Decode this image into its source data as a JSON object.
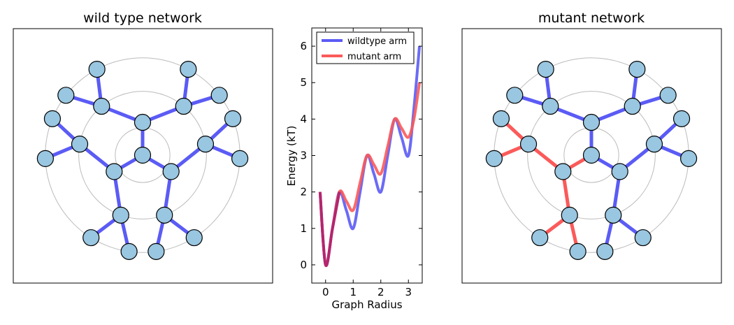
{
  "left_panel": {
    "title": "wild type network"
  },
  "right_panel": {
    "title": "mutant network"
  },
  "colors": {
    "wildtype": "#5b5bf5",
    "mutant": "#fb5a5a",
    "node_fill": "#99c6e0",
    "ring": "#bbbbbb",
    "overlap": "#b3266e"
  },
  "chart_data": {
    "type": "line",
    "title": "",
    "xlabel": "Graph Radius",
    "ylabel": "Energy (kT)",
    "xlim": [
      -0.5,
      3.5
    ],
    "ylim": [
      -0.5,
      6.5
    ],
    "xticks": [
      0,
      1,
      2,
      3
    ],
    "yticks": [
      0,
      1,
      2,
      3,
      4,
      5,
      6
    ],
    "legend_position": "top-left",
    "series": [
      {
        "name": "wildtype arm",
        "color": "#5b5bf5",
        "x": [
          -0.2,
          0.0,
          0.25,
          0.5,
          0.75,
          1.0,
          1.25,
          1.5,
          1.75,
          2.0,
          2.25,
          2.5,
          2.75,
          3.0,
          3.2,
          3.4
        ],
        "y": [
          2.0,
          0.0,
          1.0,
          2.0,
          1.5,
          1.0,
          2.0,
          3.0,
          2.5,
          2.0,
          3.0,
          4.0,
          3.5,
          3.0,
          4.3,
          6.0
        ]
      },
      {
        "name": "mutant arm",
        "color": "#fb5a5a",
        "x": [
          -0.2,
          0.0,
          0.25,
          0.5,
          0.75,
          1.0,
          1.25,
          1.5,
          1.75,
          2.0,
          2.25,
          2.5,
          2.75,
          3.0,
          3.2,
          3.4
        ],
        "y": [
          2.0,
          0.0,
          1.0,
          2.0,
          1.75,
          1.5,
          2.25,
          3.0,
          2.75,
          2.5,
          3.25,
          4.0,
          3.75,
          3.5,
          4.0,
          5.0
        ]
      }
    ]
  }
}
